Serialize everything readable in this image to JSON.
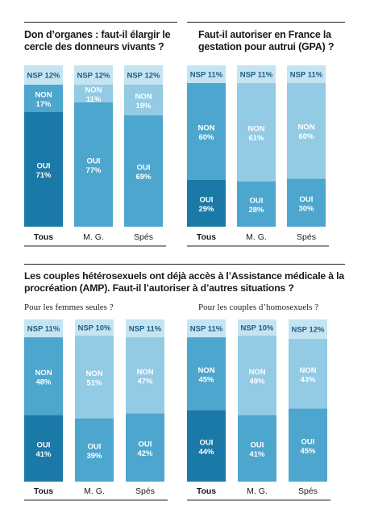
{
  "colors": {
    "oui_main": "#1b79a8",
    "oui_other": "#4da6cd",
    "non_main": "#4da6cd",
    "non_other": "#92cbe3",
    "nsp": "#c5e4f1"
  },
  "section_title": "Les couples hétérosexuels ont déjà accès à l’Assistance médicale à la procréation (AMP). Faut-il l’autoriser à d’autres situations ?",
  "panels": {
    "organes": {
      "title": "Don d’organes : faut-il élargir le cercle des donneurs vivants ?",
      "subtitle": ""
    },
    "gpa": {
      "title": "Faut-il autoriser en France la gestation pour autrui (GPA) ?",
      "subtitle": ""
    },
    "amp_femmes": {
      "title": "",
      "subtitle": "Pour les femmes seules ?"
    },
    "amp_homos": {
      "title": "",
      "subtitle": "Pour les couples d’homosexuels ?"
    }
  },
  "chart_data": [
    {
      "id": "organes",
      "type": "bar",
      "stacked": true,
      "categories": [
        "Tous",
        "M. G.",
        "Spés"
      ],
      "series": [
        {
          "name": "OUI",
          "values": [
            71,
            77,
            69
          ]
        },
        {
          "name": "NON",
          "values": [
            17,
            11,
            19
          ]
        },
        {
          "name": "NSP",
          "values": [
            12,
            12,
            12
          ]
        }
      ]
    },
    {
      "id": "gpa",
      "type": "bar",
      "stacked": true,
      "categories": [
        "Tous",
        "M. G.",
        "Spés"
      ],
      "series": [
        {
          "name": "OUI",
          "values": [
            29,
            28,
            30
          ]
        },
        {
          "name": "NON",
          "values": [
            60,
            61,
            60
          ]
        },
        {
          "name": "NSP",
          "values": [
            11,
            11,
            11
          ]
        }
      ]
    },
    {
      "id": "amp_femmes",
      "type": "bar",
      "stacked": true,
      "categories": [
        "Tous",
        "M. G.",
        "Spés"
      ],
      "series": [
        {
          "name": "OUI",
          "values": [
            41,
            39,
            42
          ]
        },
        {
          "name": "NON",
          "values": [
            48,
            51,
            47
          ]
        },
        {
          "name": "NSP",
          "values": [
            11,
            10,
            11
          ]
        }
      ]
    },
    {
      "id": "amp_homos",
      "type": "bar",
      "stacked": true,
      "categories": [
        "Tous",
        "M. G.",
        "Spés"
      ],
      "series": [
        {
          "name": "OUI",
          "values": [
            44,
            41,
            45
          ]
        },
        {
          "name": "NON",
          "values": [
            45,
            49,
            43
          ]
        },
        {
          "name": "NSP",
          "values": [
            11,
            10,
            12
          ]
        }
      ]
    }
  ]
}
